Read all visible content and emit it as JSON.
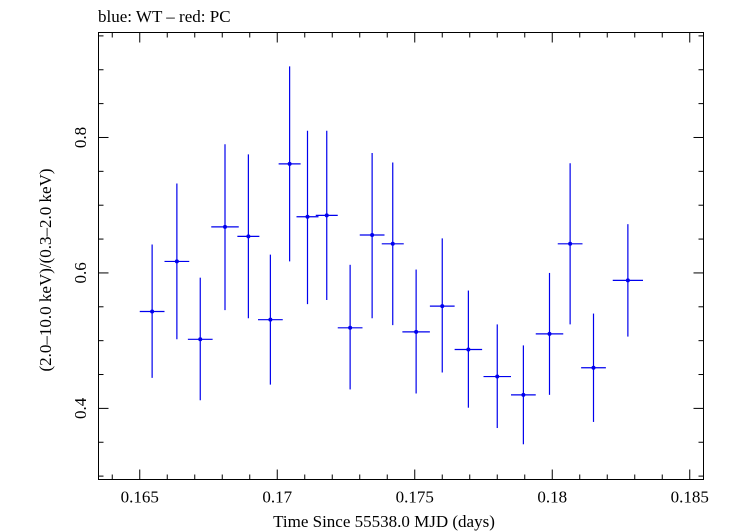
{
  "chart_data": {
    "type": "scatter",
    "title": "blue: WT – red: PC",
    "xlabel": "Time Since 55538.0 MJD (days)",
    "ylabel": "(2.0–10.0 keV)/(0.3–2.0 keV)",
    "xlim": [
      0.1635,
      0.1855
    ],
    "ylim": [
      0.295,
      0.955
    ],
    "xticks": [
      0.165,
      0.17,
      0.175,
      0.18,
      0.185
    ],
    "xtick_labels": [
      "0.165",
      "0.17",
      "0.175",
      "0.18",
      "0.185"
    ],
    "yticks": [
      0.4,
      0.6,
      0.8
    ],
    "ytick_labels": [
      "0.4",
      "0.6",
      "0.8"
    ],
    "grid": false,
    "series": [
      {
        "color": "#0000ee",
        "points": [
          {
            "x": 0.16545,
            "xerr": 0.00045,
            "y": 0.543,
            "ylo": 0.445,
            "yhi": 0.642
          },
          {
            "x": 0.16635,
            "xerr": 0.00045,
            "y": 0.617,
            "ylo": 0.502,
            "yhi": 0.732
          },
          {
            "x": 0.1672,
            "xerr": 0.00045,
            "y": 0.502,
            "ylo": 0.412,
            "yhi": 0.593
          },
          {
            "x": 0.1681,
            "xerr": 0.0005,
            "y": 0.668,
            "ylo": 0.545,
            "yhi": 0.79
          },
          {
            "x": 0.16895,
            "xerr": 0.0004,
            "y": 0.654,
            "ylo": 0.533,
            "yhi": 0.775
          },
          {
            "x": 0.16975,
            "xerr": 0.00045,
            "y": 0.531,
            "ylo": 0.435,
            "yhi": 0.627
          },
          {
            "x": 0.17045,
            "xerr": 0.0004,
            "y": 0.761,
            "ylo": 0.617,
            "yhi": 0.905
          },
          {
            "x": 0.1711,
            "xerr": 0.0004,
            "y": 0.683,
            "ylo": 0.554,
            "yhi": 0.81
          },
          {
            "x": 0.1718,
            "xerr": 0.0004,
            "y": 0.685,
            "ylo": 0.56,
            "yhi": 0.81
          },
          {
            "x": 0.17265,
            "xerr": 0.00045,
            "y": 0.519,
            "ylo": 0.428,
            "yhi": 0.612
          },
          {
            "x": 0.17345,
            "xerr": 0.00045,
            "y": 0.656,
            "ylo": 0.533,
            "yhi": 0.777
          },
          {
            "x": 0.1742,
            "xerr": 0.0004,
            "y": 0.643,
            "ylo": 0.523,
            "yhi": 0.763
          },
          {
            "x": 0.17505,
            "xerr": 0.0005,
            "y": 0.513,
            "ylo": 0.422,
            "yhi": 0.605
          },
          {
            "x": 0.176,
            "xerr": 0.00045,
            "y": 0.551,
            "ylo": 0.453,
            "yhi": 0.651
          },
          {
            "x": 0.17695,
            "xerr": 0.0005,
            "y": 0.487,
            "ylo": 0.401,
            "yhi": 0.574
          },
          {
            "x": 0.178,
            "xerr": 0.0005,
            "y": 0.447,
            "ylo": 0.371,
            "yhi": 0.524
          },
          {
            "x": 0.17895,
            "xerr": 0.00045,
            "y": 0.42,
            "ylo": 0.347,
            "yhi": 0.493
          },
          {
            "x": 0.1799,
            "xerr": 0.0005,
            "y": 0.51,
            "ylo": 0.42,
            "yhi": 0.6
          },
          {
            "x": 0.18065,
            "xerr": 0.00045,
            "y": 0.643,
            "ylo": 0.524,
            "yhi": 0.762
          },
          {
            "x": 0.1815,
            "xerr": 0.00045,
            "y": 0.46,
            "ylo": 0.38,
            "yhi": 0.54
          },
          {
            "x": 0.18275,
            "xerr": 0.00055,
            "y": 0.589,
            "ylo": 0.506,
            "yhi": 0.672
          }
        ]
      }
    ]
  }
}
